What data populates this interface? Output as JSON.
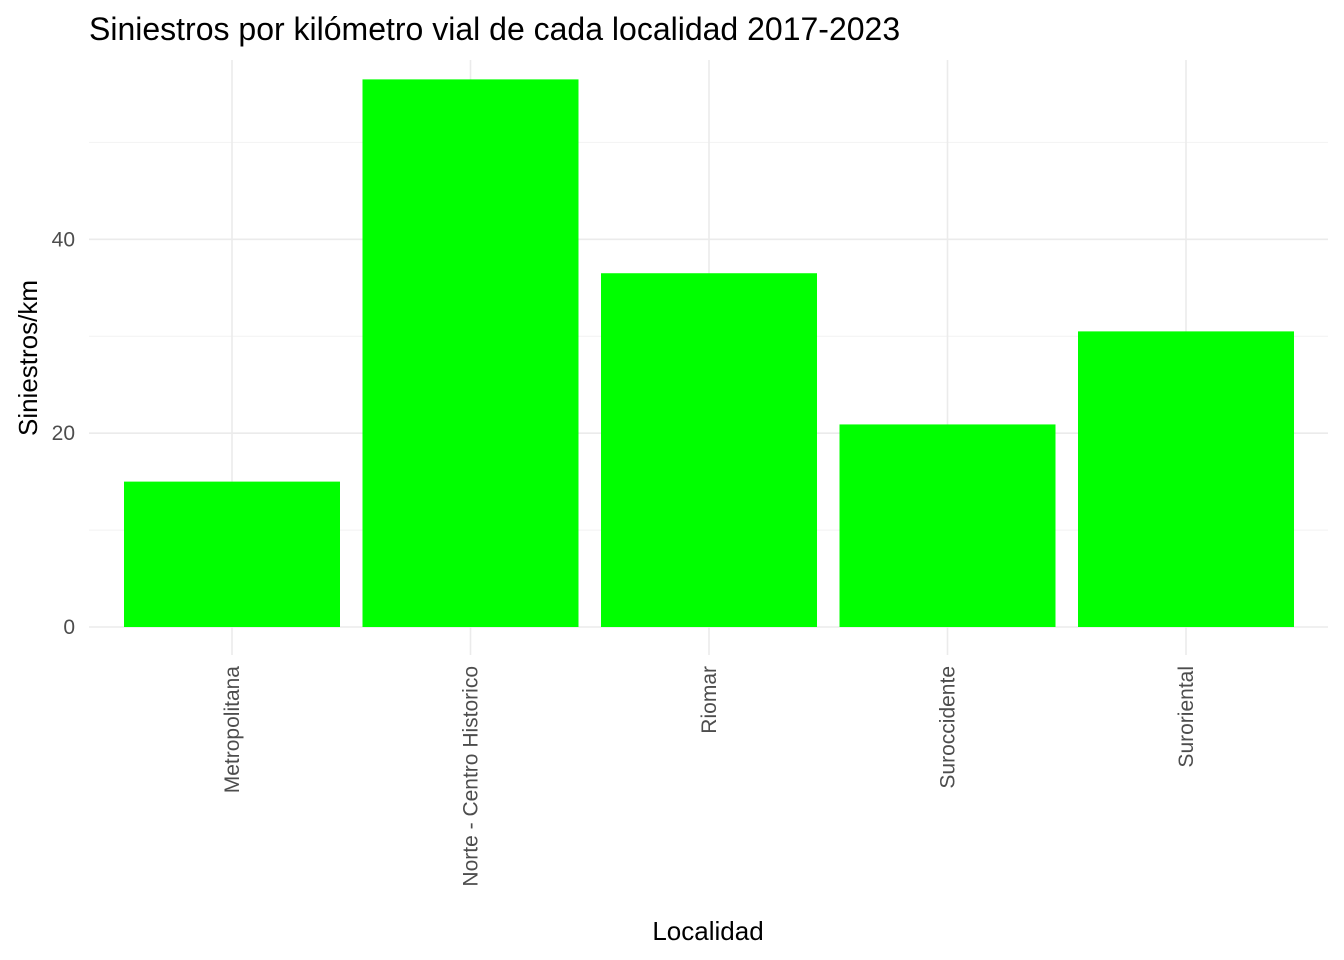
{
  "chart_data": {
    "type": "bar",
    "title": "Siniestros por kilómetro vial de cada localidad 2017-2023",
    "xlabel": "Localidad",
    "ylabel": "Siniestros/km",
    "categories": [
      "Metropolitana",
      "Norte - Centro Historico",
      "Riomar",
      "Suroccidente",
      "Suroriental"
    ],
    "values": [
      15.0,
      56.5,
      36.5,
      20.9,
      30.5
    ],
    "ylim": [
      0,
      58.5
    ],
    "yticks": [
      0,
      20,
      40
    ],
    "y_minor_ticks": [
      10,
      30,
      50
    ],
    "grid": true,
    "legend": "none",
    "bar_color": "#00ff00",
    "x_tick_rotation": "vertical"
  }
}
